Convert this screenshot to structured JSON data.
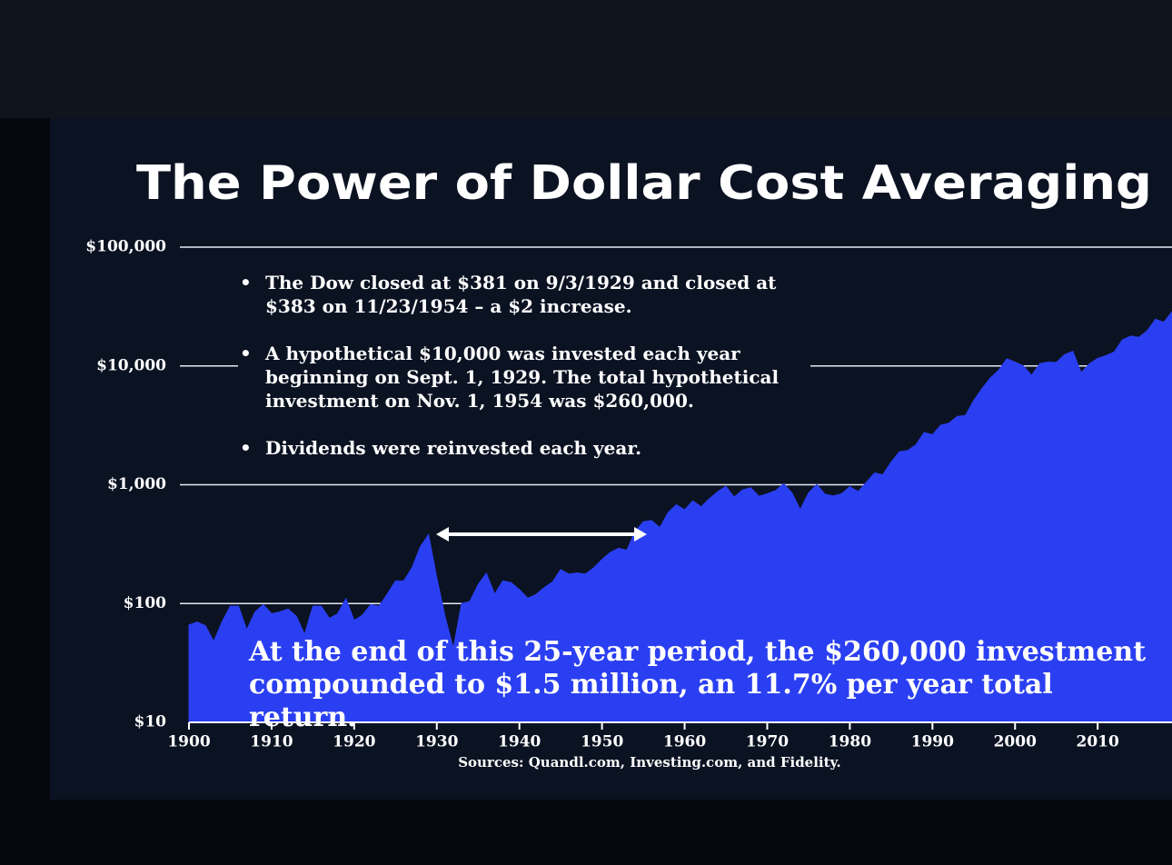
{
  "chart_data": {
    "type": "area",
    "title": "The Power of Dollar Cost Averaging",
    "bullets": [
      "The Dow closed at $381 on 9/3/1929 and closed at $383 on 11/23/1954 – a $2 increase.",
      "A hypothetical $10,000 was invested each year beginning on Sept. 1, 1929. The total hypothetical investment on Nov. 1, 1954 was $260,000.",
      "Dividends were reinvested each year."
    ],
    "annotation": "At the end of this 25-year period, the $260,000 investment compounded to $1.5 million, an 11.7% per year total return.",
    "source": "Sources: Quandl.com, Investing.com, and Fidelity.",
    "x": [
      1900,
      1901,
      1902,
      1903,
      1904,
      1905,
      1906,
      1907,
      1908,
      1909,
      1910,
      1911,
      1912,
      1913,
      1914,
      1915,
      1916,
      1917,
      1918,
      1919,
      1920,
      1921,
      1922,
      1923,
      1924,
      1925,
      1926,
      1927,
      1928,
      1929,
      1930,
      1931,
      1932,
      1933,
      1934,
      1935,
      1936,
      1937,
      1938,
      1939,
      1940,
      1941,
      1942,
      1943,
      1944,
      1945,
      1946,
      1947,
      1948,
      1949,
      1950,
      1951,
      1952,
      1953,
      1954,
      1955,
      1956,
      1957,
      1958,
      1959,
      1960,
      1961,
      1962,
      1963,
      1964,
      1965,
      1966,
      1967,
      1968,
      1969,
      1970,
      1971,
      1972,
      1973,
      1974,
      1975,
      1976,
      1977,
      1978,
      1979,
      1980,
      1981,
      1982,
      1983,
      1984,
      1985,
      1986,
      1987,
      1988,
      1989,
      1990,
      1991,
      1992,
      1993,
      1994,
      1995,
      1996,
      1997,
      1998,
      1999,
      2000,
      2001,
      2002,
      2003,
      2004,
      2005,
      2006,
      2007,
      2008,
      2009,
      2010,
      2011,
      2012,
      2013,
      2014,
      2015,
      2016,
      2017,
      2018,
      2019
    ],
    "values": [
      66,
      70,
      65,
      48,
      70,
      95,
      95,
      60,
      85,
      98,
      82,
      85,
      90,
      78,
      55,
      95,
      95,
      75,
      82,
      110,
      72,
      80,
      98,
      95,
      120,
      155,
      155,
      200,
      300,
      381,
      165,
      78,
      42,
      100,
      104,
      144,
      180,
      120,
      155,
      150,
      131,
      111,
      119,
      136,
      152,
      193,
      177,
      181,
      177,
      200,
      235,
      269,
      292,
      281,
      404,
      488,
      500,
      436,
      584,
      679,
      616,
      731,
      652,
      763,
      874,
      969,
      786,
      905,
      944,
      800,
      839,
      890,
      1020,
      851,
      616,
      852,
      1004,
      831,
      805,
      839,
      964,
      875,
      1047,
      1259,
      1212,
      1547,
      1896,
      1939,
      2169,
      2753,
      2634,
      3169,
      3301,
      3754,
      3834,
      5117,
      6448,
      7908,
      9181,
      11497,
      10787,
      10021,
      8342,
      10454,
      10783,
      10718,
      12463,
      13265,
      8776,
      10428,
      11578,
      12218,
      13104,
      16577,
      17823,
      17425,
      19763,
      24719,
      23327,
      28538
    ],
    "color": "#2b3ff2",
    "yscale": "log",
    "xlim": [
      1900,
      2019
    ],
    "ylim": [
      10,
      100000
    ],
    "xticks": [
      1900,
      1910,
      1920,
      1930,
      1940,
      1950,
      1960,
      1970,
      1980,
      1990,
      2000,
      2010
    ],
    "yticks": [
      {
        "value": 10,
        "label": "$10"
      },
      {
        "value": 100,
        "label": "$100"
      },
      {
        "value": 1000,
        "label": "$1,000"
      },
      {
        "value": 10000,
        "label": "$10,000"
      },
      {
        "value": 100000,
        "label": "$100,000"
      }
    ],
    "grid": true
  }
}
